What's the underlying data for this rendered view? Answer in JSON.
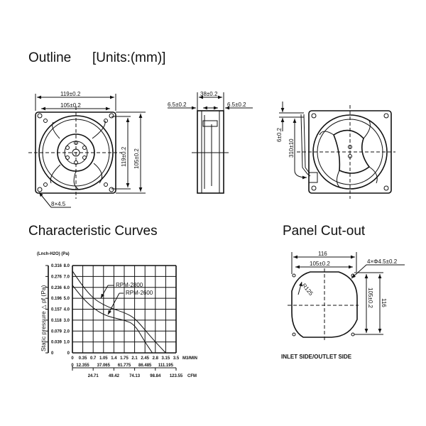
{
  "titles": {
    "outline": "Outline",
    "units": "[Units:(mm)]",
    "curves": "Characteristic Curves",
    "panel": "Panel Cut-out"
  },
  "outline": {
    "front_width": "119±0.2",
    "front_hole_pitch": "105±0.2",
    "front_height": "119±0.2",
    "front_hole_pitch_v": "105±0.2",
    "mount_holes": "8×4.5",
    "side_depth": "38±0.2",
    "side_flange_left": "6.5±0.2",
    "side_flange_right": "6.5±0.2",
    "lead_offset": "6±0.2",
    "lead_length": "310±10"
  },
  "panel": {
    "outer_width": "116",
    "hole_pitch": "105±0.2",
    "holes": "4×Φ4.5±0.2",
    "radius": "R125",
    "hole_pitch_v": "105±0.2",
    "outer_height": "116",
    "caption": "INLET SIDE/OUTLET SIDE"
  },
  "chart_data": {
    "type": "line",
    "title": "",
    "ylabel": "Static pressure △ pf (Pa)",
    "yunits_header": "(Lnch-H2O)  (Pa)",
    "xlim": [
      0,
      3.5
    ],
    "ylim": [
      0,
      8
    ],
    "grid": true,
    "x_ticks_m3": [
      "0",
      "0.35",
      "0.7",
      "1.05",
      "1.4",
      "1.75",
      "2.1",
      "2.45",
      "2.8",
      "3.15",
      "3.5"
    ],
    "x_unit_m3": "M3/MIN",
    "cfm_ticks_upper": [
      "0",
      "12.355",
      "37.065",
      "61.775",
      "86.485",
      "111.195"
    ],
    "cfm_ticks_lower": [
      "24.71",
      "49.42",
      "74.13",
      "98.84",
      "123.55"
    ],
    "x_unit_cfm": "CFM",
    "y_ticks_pa": [
      "0",
      "1.0",
      "2.0",
      "3.0",
      "4.0",
      "5.0",
      "6.0",
      "7.0",
      "8.0"
    ],
    "y_ticks_inch": [
      "0",
      "0.039",
      "0.079",
      "0.118",
      "0.157",
      "0.196",
      "0.236",
      "0.276",
      "0.316"
    ],
    "series": [
      {
        "name": "RPM-2800",
        "x": [
          0,
          0.35,
          0.7,
          1.05,
          1.4,
          1.75,
          2.1,
          2.45,
          2.8,
          3.15
        ],
        "y": [
          7.5,
          6.1,
          5.0,
          4.4,
          4.0,
          3.7,
          3.2,
          2.1,
          1.0,
          0
        ]
      },
      {
        "name": "RPM-2600",
        "x": [
          0,
          0.35,
          0.7,
          1.05,
          1.4,
          1.75,
          2.1,
          2.45,
          2.7
        ],
        "y": [
          6.2,
          5.0,
          4.1,
          3.5,
          3.2,
          3.0,
          2.6,
          1.0,
          0
        ]
      }
    ]
  }
}
